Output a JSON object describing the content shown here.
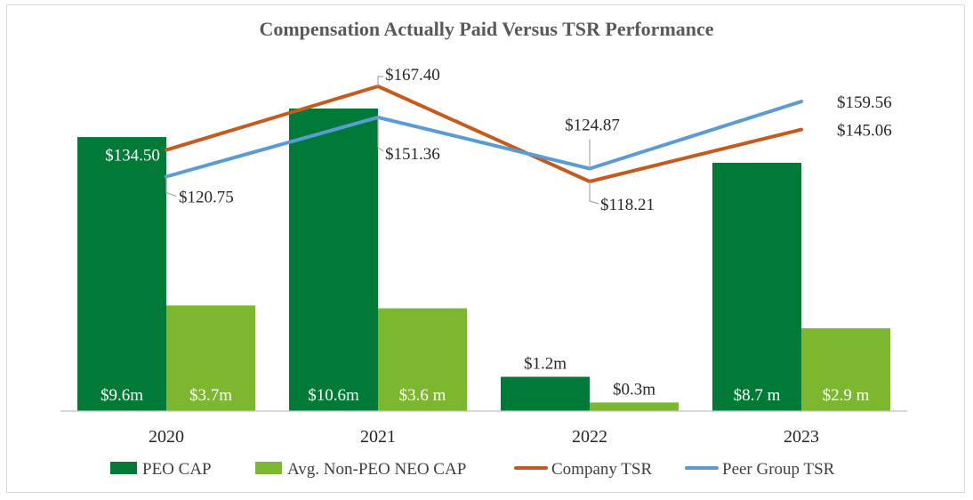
{
  "chart_data": {
    "type": "bar+line",
    "title": "Compensation Actually Paid Versus TSR Performance",
    "categories": [
      "2020",
      "2021",
      "2022",
      "2023"
    ],
    "bar_series": [
      {
        "name": "PEO CAP",
        "color": "#027a37",
        "values": [
          9.6,
          10.6,
          1.2,
          8.7
        ],
        "labels": [
          "$9.6m",
          "$10.6m",
          "$1.2m",
          "$8.7 m"
        ]
      },
      {
        "name": "Avg. Non-PEO NEO CAP",
        "color": "#7db72f",
        "values": [
          3.7,
          3.6,
          0.3,
          2.9
        ],
        "labels": [
          "$3.7m",
          "$3.6 m",
          "$0.3m",
          "$2.9 m"
        ]
      }
    ],
    "bar_ylim": [
      0,
      11.5
    ],
    "line_series": [
      {
        "name": "Company TSR",
        "color": "#c55a1e",
        "values": [
          134.5,
          167.4,
          118.21,
          145.06
        ],
        "labels": [
          "$134.50",
          "$167.40",
          "$118.21",
          "$145.06"
        ]
      },
      {
        "name": "Peer Group TSR",
        "color": "#5b9bd5",
        "values": [
          120.75,
          151.36,
          124.87,
          159.56
        ],
        "labels": [
          "$120.75",
          "$151.36",
          "$124.87",
          "$159.56"
        ]
      }
    ],
    "line_ylim": [
      0,
      200
    ],
    "legend_position": "bottom",
    "grid": false
  }
}
